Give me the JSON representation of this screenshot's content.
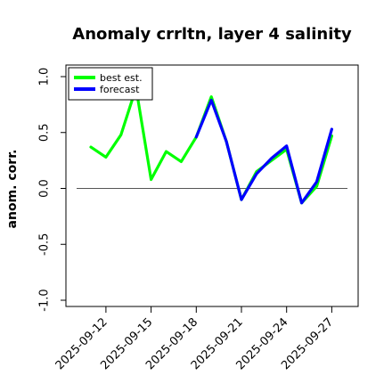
{
  "chart_data": {
    "type": "line",
    "title": "Anomaly crrltn, layer 4 salinity",
    "xlabel": "",
    "ylabel": "anom. corr.",
    "ylim": [
      -1.0,
      1.0
    ],
    "yticks": [
      "-1.0",
      "-0.5",
      "0.0",
      "0.5",
      "1.0"
    ],
    "x": [
      "2025-09-11",
      "2025-09-12",
      "2025-09-13",
      "2025-09-14",
      "2025-09-15",
      "2025-09-16",
      "2025-09-17",
      "2025-09-18",
      "2025-09-19",
      "2025-09-20",
      "2025-09-21",
      "2025-09-22",
      "2025-09-23",
      "2025-09-24",
      "2025-09-25",
      "2025-09-26",
      "2025-09-27"
    ],
    "xticks": [
      "2025-09-12",
      "2025-09-15",
      "2025-09-18",
      "2025-09-21",
      "2025-09-24",
      "2025-09-27"
    ],
    "highlight_tick": "2025-09-18",
    "highlight_color": "#228b22",
    "reference_line": 0.0,
    "series": [
      {
        "name": "best est.",
        "color": "#00ff00",
        "values": [
          0.37,
          0.28,
          0.48,
          0.9,
          0.08,
          0.33,
          0.24,
          0.46,
          0.82,
          0.42,
          -0.1,
          0.15,
          0.25,
          0.35,
          -0.13,
          0.02,
          0.47
        ]
      },
      {
        "name": "forecast",
        "color": "#0000ff",
        "values": [
          null,
          null,
          null,
          null,
          null,
          null,
          null,
          0.46,
          0.79,
          0.42,
          -0.1,
          0.13,
          0.27,
          0.38,
          -0.13,
          0.06,
          0.53
        ]
      }
    ],
    "legend_position": "top-left",
    "grid": false
  }
}
